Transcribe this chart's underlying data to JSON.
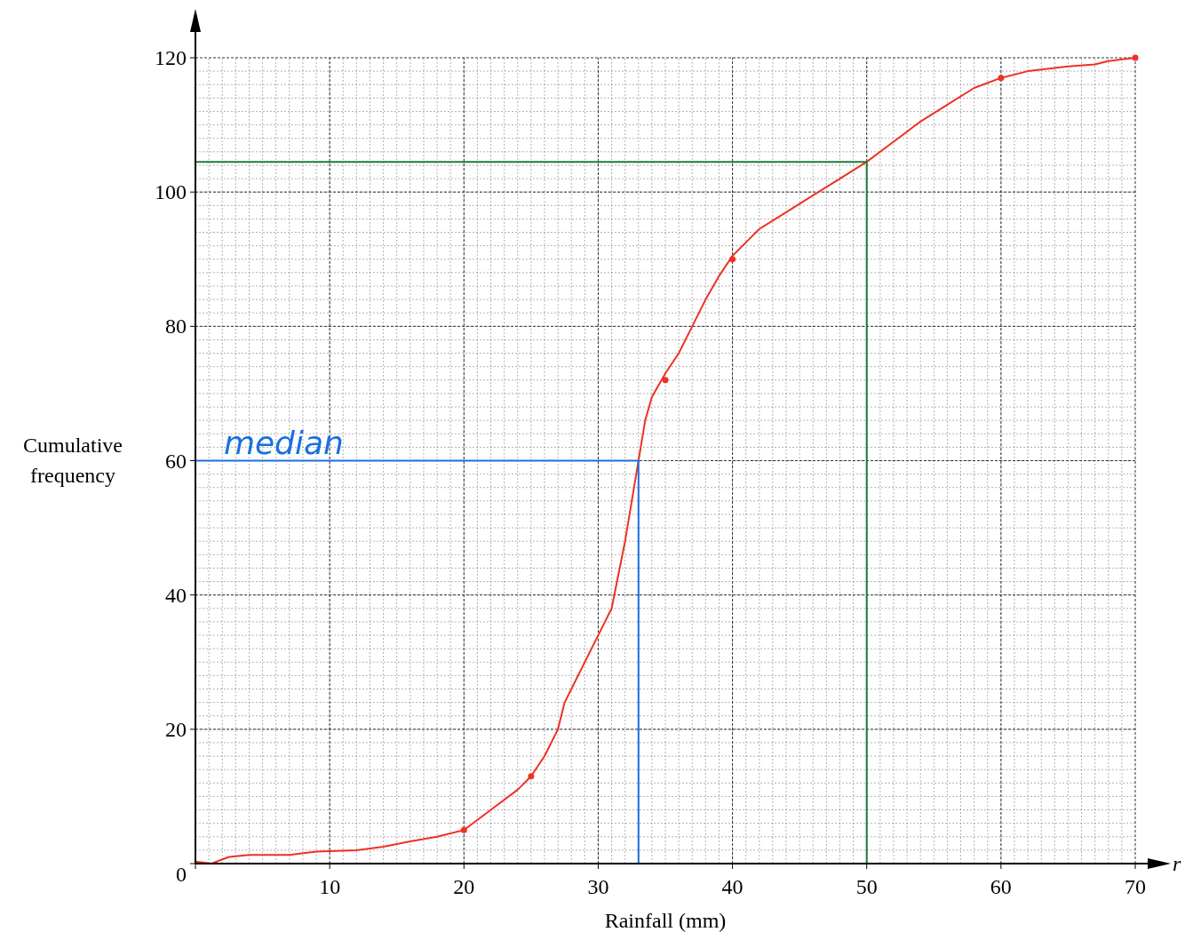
{
  "chart_data": {
    "type": "line",
    "xlabel": "Rainfall (mm)",
    "ylabel": "Cumulative frequency",
    "xlim": [
      0,
      70
    ],
    "ylim": [
      0,
      120
    ],
    "xticks": [
      {
        "value": 0,
        "label": null
      },
      10,
      20,
      30,
      40,
      50,
      60,
      70
    ],
    "yticks": [
      0,
      20,
      40,
      60,
      80,
      100,
      120
    ],
    "grid": true,
    "series": [
      {
        "color": "#ee3124",
        "x": [
          0,
          1.2,
          2.5,
          4,
          7,
          9,
          12,
          14,
          16,
          18,
          20,
          22,
          24,
          25,
          26,
          27,
          27.5,
          28.5,
          29.5,
          30.5,
          31,
          31.5,
          32,
          32.5,
          33,
          33.5,
          34,
          35,
          36,
          37,
          38,
          39,
          40,
          41,
          42,
          44,
          46,
          48,
          50,
          52,
          54,
          56,
          58,
          60,
          62,
          65,
          67,
          68,
          70
        ],
        "values": [
          0.3,
          0,
          1,
          1.3,
          1.3,
          1.8,
          2,
          2.5,
          3.3,
          4,
          5,
          8,
          11,
          13,
          16,
          20,
          24,
          28,
          32,
          36,
          38,
          43,
          48,
          54,
          60,
          66,
          69.5,
          73,
          76,
          80,
          84,
          87.5,
          90.5,
          92.5,
          94.5,
          97,
          99.5,
          102,
          104.5,
          107.5,
          110.5,
          113,
          115.5,
          117,
          118,
          118.7,
          119,
          119.5,
          120
        ]
      },
      {
        "type": "scatter",
        "color": "#ee3124",
        "marker": "circle",
        "x": [
          20,
          25,
          35,
          40,
          60,
          70
        ],
        "values": [
          5,
          13,
          72,
          90,
          117,
          120
        ]
      },
      {
        "color": "#1a6fe0",
        "x": [
          0,
          33,
          33
        ],
        "values": [
          60,
          60,
          0
        ]
      },
      {
        "color": "#1e7a3c",
        "x": [
          0,
          50,
          50
        ],
        "values": [
          104.5,
          104.5,
          0
        ]
      }
    ],
    "annotations": [
      "median",
      "r"
    ]
  }
}
